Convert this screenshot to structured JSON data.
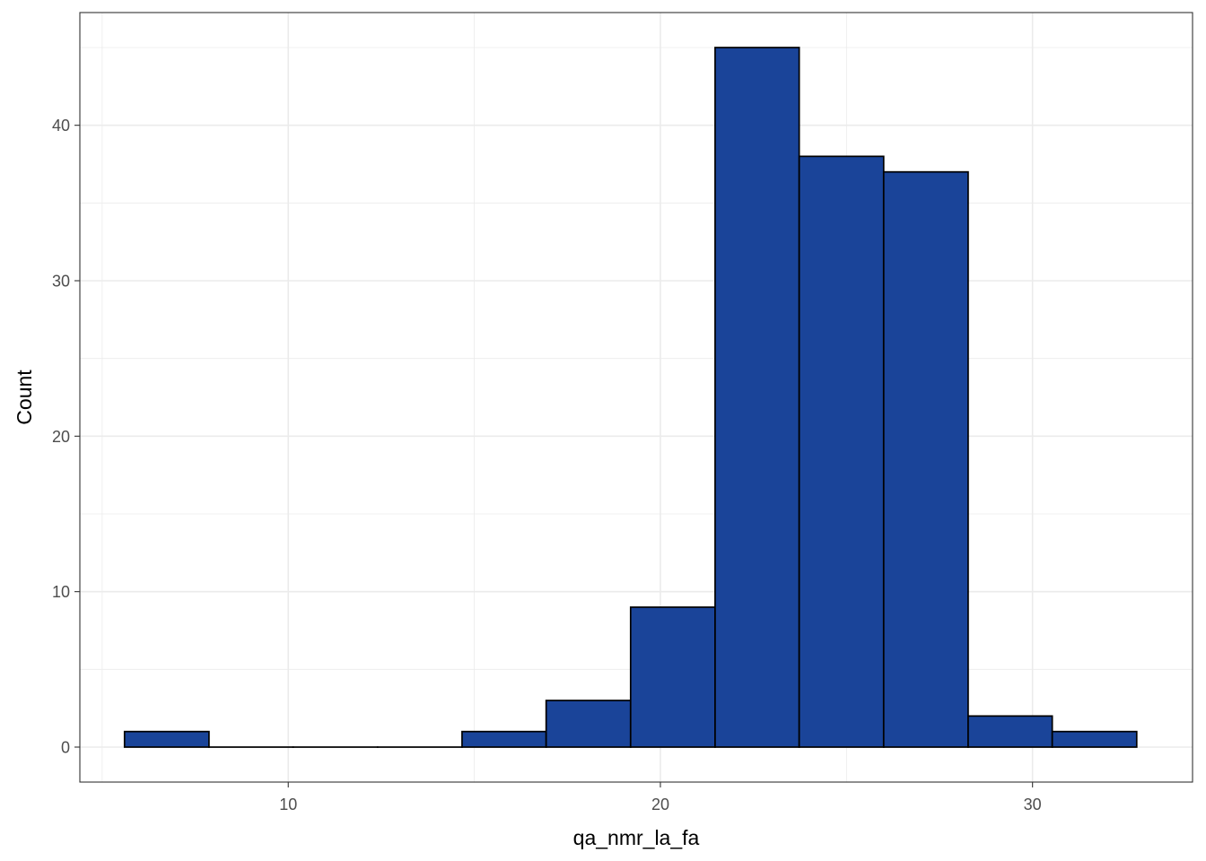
{
  "chart_data": {
    "type": "bar",
    "subtype": "histogram",
    "xlabel": "qa_nmr_la_fa",
    "ylabel": "Count",
    "xlim": [
      4.4,
      34.3
    ],
    "ylim": [
      -2.25,
      47.25
    ],
    "x_ticks": [
      10,
      20,
      30
    ],
    "y_ticks": [
      0,
      10,
      20,
      30,
      40
    ],
    "grid": true,
    "bins": [
      {
        "x0": 5.6,
        "x1": 7.87,
        "count": 1
      },
      {
        "x0": 7.87,
        "x1": 10.13,
        "count": 0
      },
      {
        "x0": 10.13,
        "x1": 12.4,
        "count": 0
      },
      {
        "x0": 12.4,
        "x1": 14.67,
        "count": 0
      },
      {
        "x0": 14.67,
        "x1": 16.93,
        "count": 1
      },
      {
        "x0": 16.93,
        "x1": 19.2,
        "count": 3
      },
      {
        "x0": 19.2,
        "x1": 21.47,
        "count": 9
      },
      {
        "x0": 21.47,
        "x1": 23.73,
        "count": 45
      },
      {
        "x0": 23.73,
        "x1": 26.0,
        "count": 38
      },
      {
        "x0": 26.0,
        "x1": 28.27,
        "count": 37
      },
      {
        "x0": 28.27,
        "x1": 30.53,
        "count": 2
      },
      {
        "x0": 30.53,
        "x1": 32.8,
        "count": 1
      }
    ],
    "colors": {
      "fill": "#1a4499",
      "stroke": "#000000",
      "grid": "#ebebeb",
      "panel_border": "#333333"
    }
  }
}
